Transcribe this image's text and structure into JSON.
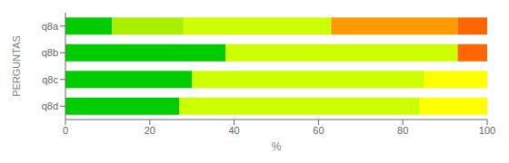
{
  "chart_data": {
    "type": "bar",
    "orientation": "horizontal",
    "stacked": true,
    "categories": [
      "q8a",
      "q8b",
      "q8c",
      "q8d"
    ],
    "series": [
      {
        "color": "#00CC00",
        "values": [
          11,
          38,
          30,
          27
        ]
      },
      {
        "color": "#AAEE00",
        "values": [
          17,
          0,
          0,
          0
        ]
      },
      {
        "color": "#CCFF00",
        "values": [
          35,
          55,
          55,
          57
        ]
      },
      {
        "color": "#FFFF00",
        "values": [
          0,
          0,
          15,
          16
        ]
      },
      {
        "color": "#FF9900",
        "values": [
          30,
          0,
          0,
          0
        ]
      },
      {
        "color": "#FF6600",
        "values": [
          7,
          7,
          0,
          0
        ]
      }
    ],
    "xlabel": "%",
    "ylabel": "PERGUNTAS",
    "xlim": [
      0,
      100
    ],
    "xticks": [
      0,
      20,
      40,
      60,
      80,
      100
    ],
    "grid": false
  }
}
